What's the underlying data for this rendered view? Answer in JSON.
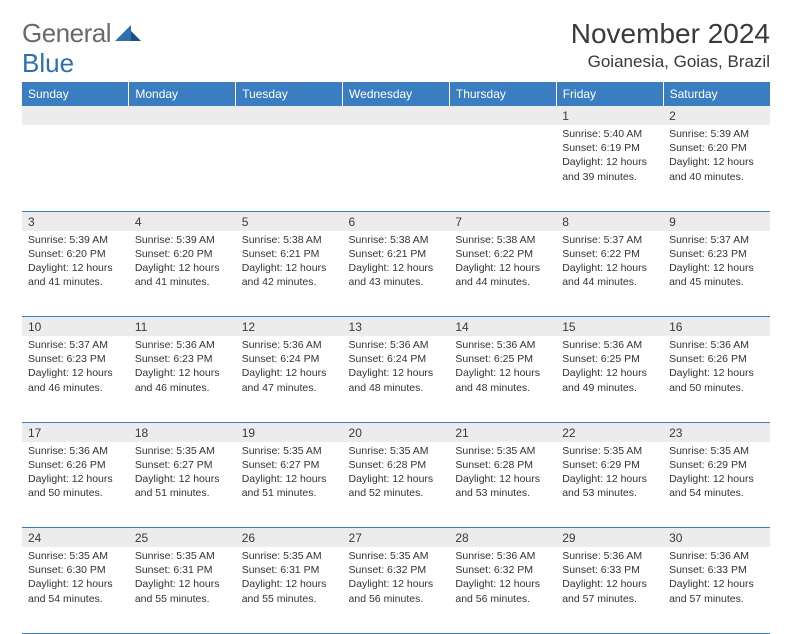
{
  "logo": {
    "text1": "General",
    "text2": "Blue"
  },
  "title": "November 2024",
  "location": "Goianesia, Goias, Brazil",
  "colors": {
    "header_bg": "#3a7ec1",
    "header_fg": "#ffffff",
    "daynum_bg": "#ececec",
    "border": "#3a7ec1",
    "text": "#333333",
    "logo_gray": "#6a6a6a",
    "logo_blue": "#2f6fb0"
  },
  "weekdays": [
    "Sunday",
    "Monday",
    "Tuesday",
    "Wednesday",
    "Thursday",
    "Friday",
    "Saturday"
  ],
  "weeks": [
    [
      null,
      null,
      null,
      null,
      null,
      {
        "n": "1",
        "sr": "5:40 AM",
        "ss": "6:19 PM",
        "dl": "12 hours and 39 minutes."
      },
      {
        "n": "2",
        "sr": "5:39 AM",
        "ss": "6:20 PM",
        "dl": "12 hours and 40 minutes."
      }
    ],
    [
      {
        "n": "3",
        "sr": "5:39 AM",
        "ss": "6:20 PM",
        "dl": "12 hours and 41 minutes."
      },
      {
        "n": "4",
        "sr": "5:39 AM",
        "ss": "6:20 PM",
        "dl": "12 hours and 41 minutes."
      },
      {
        "n": "5",
        "sr": "5:38 AM",
        "ss": "6:21 PM",
        "dl": "12 hours and 42 minutes."
      },
      {
        "n": "6",
        "sr": "5:38 AM",
        "ss": "6:21 PM",
        "dl": "12 hours and 43 minutes."
      },
      {
        "n": "7",
        "sr": "5:38 AM",
        "ss": "6:22 PM",
        "dl": "12 hours and 44 minutes."
      },
      {
        "n": "8",
        "sr": "5:37 AM",
        "ss": "6:22 PM",
        "dl": "12 hours and 44 minutes."
      },
      {
        "n": "9",
        "sr": "5:37 AM",
        "ss": "6:23 PM",
        "dl": "12 hours and 45 minutes."
      }
    ],
    [
      {
        "n": "10",
        "sr": "5:37 AM",
        "ss": "6:23 PM",
        "dl": "12 hours and 46 minutes."
      },
      {
        "n": "11",
        "sr": "5:36 AM",
        "ss": "6:23 PM",
        "dl": "12 hours and 46 minutes."
      },
      {
        "n": "12",
        "sr": "5:36 AM",
        "ss": "6:24 PM",
        "dl": "12 hours and 47 minutes."
      },
      {
        "n": "13",
        "sr": "5:36 AM",
        "ss": "6:24 PM",
        "dl": "12 hours and 48 minutes."
      },
      {
        "n": "14",
        "sr": "5:36 AM",
        "ss": "6:25 PM",
        "dl": "12 hours and 48 minutes."
      },
      {
        "n": "15",
        "sr": "5:36 AM",
        "ss": "6:25 PM",
        "dl": "12 hours and 49 minutes."
      },
      {
        "n": "16",
        "sr": "5:36 AM",
        "ss": "6:26 PM",
        "dl": "12 hours and 50 minutes."
      }
    ],
    [
      {
        "n": "17",
        "sr": "5:36 AM",
        "ss": "6:26 PM",
        "dl": "12 hours and 50 minutes."
      },
      {
        "n": "18",
        "sr": "5:35 AM",
        "ss": "6:27 PM",
        "dl": "12 hours and 51 minutes."
      },
      {
        "n": "19",
        "sr": "5:35 AM",
        "ss": "6:27 PM",
        "dl": "12 hours and 51 minutes."
      },
      {
        "n": "20",
        "sr": "5:35 AM",
        "ss": "6:28 PM",
        "dl": "12 hours and 52 minutes."
      },
      {
        "n": "21",
        "sr": "5:35 AM",
        "ss": "6:28 PM",
        "dl": "12 hours and 53 minutes."
      },
      {
        "n": "22",
        "sr": "5:35 AM",
        "ss": "6:29 PM",
        "dl": "12 hours and 53 minutes."
      },
      {
        "n": "23",
        "sr": "5:35 AM",
        "ss": "6:29 PM",
        "dl": "12 hours and 54 minutes."
      }
    ],
    [
      {
        "n": "24",
        "sr": "5:35 AM",
        "ss": "6:30 PM",
        "dl": "12 hours and 54 minutes."
      },
      {
        "n": "25",
        "sr": "5:35 AM",
        "ss": "6:31 PM",
        "dl": "12 hours and 55 minutes."
      },
      {
        "n": "26",
        "sr": "5:35 AM",
        "ss": "6:31 PM",
        "dl": "12 hours and 55 minutes."
      },
      {
        "n": "27",
        "sr": "5:35 AM",
        "ss": "6:32 PM",
        "dl": "12 hours and 56 minutes."
      },
      {
        "n": "28",
        "sr": "5:36 AM",
        "ss": "6:32 PM",
        "dl": "12 hours and 56 minutes."
      },
      {
        "n": "29",
        "sr": "5:36 AM",
        "ss": "6:33 PM",
        "dl": "12 hours and 57 minutes."
      },
      {
        "n": "30",
        "sr": "5:36 AM",
        "ss": "6:33 PM",
        "dl": "12 hours and 57 minutes."
      }
    ]
  ],
  "labels": {
    "sunrise": "Sunrise:",
    "sunset": "Sunset:",
    "daylight": "Daylight:"
  }
}
